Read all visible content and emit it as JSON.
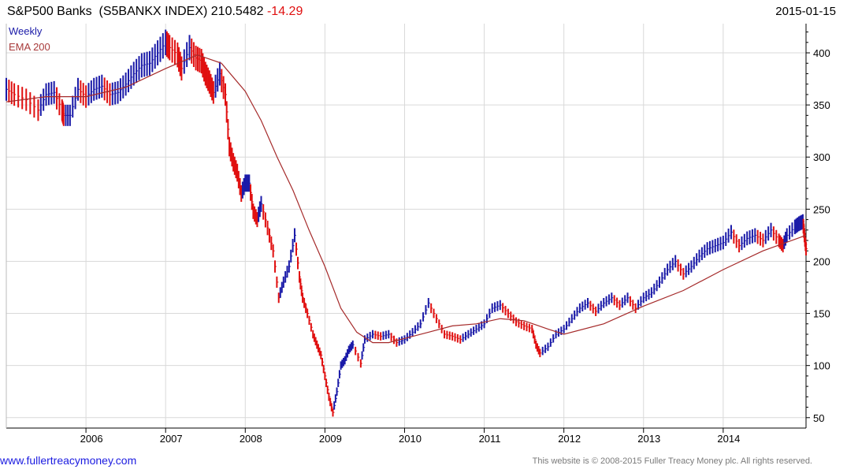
{
  "header": {
    "title": "S&P500 Banks  (S5BANKX INDEX) 210.5482",
    "change": "-14.29",
    "date": "2015-01-15"
  },
  "legend": {
    "weekly": "Weekly",
    "ema": "EMA 200"
  },
  "footer": {
    "website": "www.fullertreacymoney.com",
    "copyright": "This website is © 2008-2015 Fuller Treacy Money plc. All rights reserved."
  },
  "colors": {
    "up_bar": "#1a1aa8",
    "down_bar": "#e01010",
    "ema_line": "#a52a2a",
    "grid": "#d9d9d9",
    "axis": "#000000"
  },
  "chart_data": {
    "type": "line",
    "title": "S&P500 Banks  (S5BANKX INDEX)",
    "xlabel": "",
    "ylabel": "",
    "x_ticks": [
      "2006",
      "2007",
      "2008",
      "2009",
      "2010",
      "2011",
      "2012",
      "2013",
      "2014"
    ],
    "y_ticks": [
      50,
      100,
      150,
      200,
      250,
      300,
      350,
      400
    ],
    "xlim": [
      2005.0,
      2015.04
    ],
    "ylim": [
      40,
      428
    ],
    "grid": true,
    "legend_position": "top-left",
    "series": [
      {
        "name": "Weekly",
        "style": "price bars (up blue / down red)",
        "x": [
          2005.0,
          2005.1,
          2005.25,
          2005.4,
          2005.5,
          2005.6,
          2005.7,
          2005.72,
          2005.8,
          2005.9,
          2006.0,
          2006.1,
          2006.2,
          2006.3,
          2006.4,
          2006.5,
          2006.6,
          2006.7,
          2006.8,
          2006.9,
          2007.0,
          2007.05,
          2007.15,
          2007.2,
          2007.3,
          2007.38,
          2007.45,
          2007.5,
          2007.55,
          2007.6,
          2007.68,
          2007.75,
          2007.8,
          2007.85,
          2007.9,
          2007.95,
          2008.0,
          2008.05,
          2008.1,
          2008.15,
          2008.2,
          2008.28,
          2008.35,
          2008.42,
          2008.48,
          2008.55,
          2008.62,
          2008.68,
          2008.72,
          2008.78,
          2008.85,
          2008.9,
          2008.95,
          2009.0,
          2009.05,
          2009.1,
          2009.15,
          2009.2,
          2009.25,
          2009.3,
          2009.35,
          2009.45,
          2009.5,
          2009.6,
          2009.7,
          2009.8,
          2009.9,
          2010.0,
          2010.1,
          2010.2,
          2010.3,
          2010.4,
          2010.5,
          2010.6,
          2010.7,
          2010.8,
          2010.9,
          2011.0,
          2011.1,
          2011.2,
          2011.3,
          2011.4,
          2011.5,
          2011.6,
          2011.65,
          2011.7,
          2011.8,
          2011.9,
          2012.0,
          2012.1,
          2012.2,
          2012.3,
          2012.4,
          2012.5,
          2012.6,
          2012.7,
          2012.8,
          2012.9,
          2013.0,
          2013.1,
          2013.2,
          2013.3,
          2013.4,
          2013.5,
          2013.6,
          2013.7,
          2013.8,
          2013.9,
          2014.0,
          2014.1,
          2014.2,
          2014.3,
          2014.4,
          2014.5,
          2014.6,
          2014.7,
          2014.75,
          2014.8,
          2014.9,
          2014.95,
          2015.0,
          2015.02,
          2015.04
        ],
        "values": [
          365,
          360,
          355,
          345,
          360,
          362,
          345,
          340,
          340,
          365,
          358,
          365,
          368,
          360,
          362,
          370,
          380,
          388,
          390,
          400,
          410,
          405,
          398,
          385,
          405,
          395,
          392,
          380,
          372,
          362,
          380,
          360,
          310,
          295,
          285,
          265,
          275,
          275,
          248,
          240,
          255,
          232,
          210,
          165,
          180,
          195,
          225,
          185,
          165,
          150,
          130,
          120,
          110,
          90,
          70,
          55,
          75,
          100,
          105,
          115,
          120,
          102,
          125,
          130,
          128,
          130,
          122,
          125,
          132,
          140,
          160,
          145,
          130,
          128,
          125,
          130,
          135,
          140,
          155,
          158,
          150,
          142,
          138,
          135,
          120,
          112,
          118,
          130,
          135,
          145,
          155,
          160,
          152,
          160,
          165,
          158,
          165,
          155,
          165,
          170,
          180,
          192,
          200,
          188,
          195,
          205,
          212,
          215,
          218,
          228,
          215,
          222,
          225,
          220,
          230,
          220,
          215,
          225,
          233,
          236,
          238,
          225,
          212
        ]
      },
      {
        "name": "EMA 200",
        "style": "line",
        "x": [
          2005.0,
          2005.5,
          2006.0,
          2006.5,
          2007.0,
          2007.4,
          2007.7,
          2008.0,
          2008.2,
          2008.4,
          2008.6,
          2008.8,
          2009.0,
          2009.2,
          2009.4,
          2009.6,
          2009.8,
          2010.0,
          2010.3,
          2010.6,
          2010.9,
          2011.2,
          2011.5,
          2011.8,
          2012.0,
          2012.5,
          2013.0,
          2013.5,
          2014.0,
          2014.5,
          2015.04
        ],
        "values": [
          353,
          358,
          358,
          367,
          385,
          398,
          390,
          363,
          335,
          300,
          268,
          230,
          195,
          155,
          132,
          122,
          122,
          126,
          132,
          138,
          140,
          145,
          143,
          135,
          130,
          140,
          157,
          172,
          192,
          210,
          225
        ]
      }
    ]
  }
}
